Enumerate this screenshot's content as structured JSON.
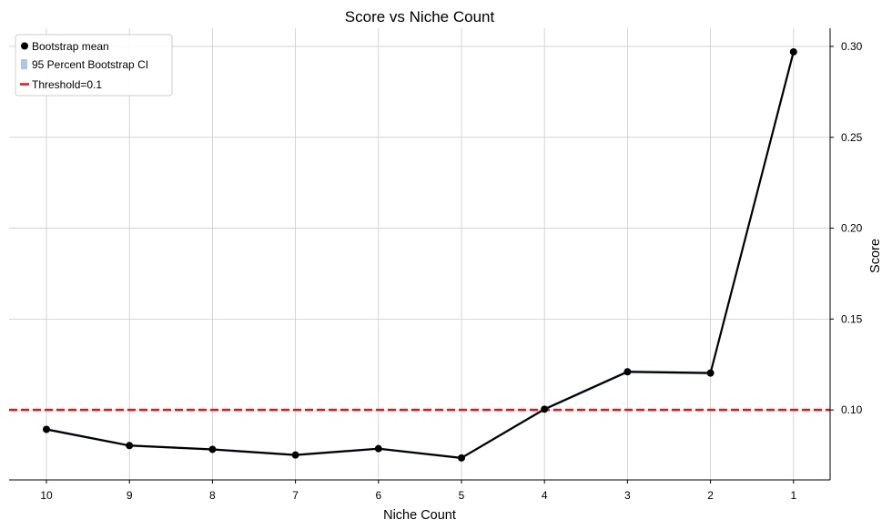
{
  "chart_data": {
    "type": "line",
    "title": "Score vs Niche Count",
    "xlabel": "Niche Count",
    "ylabel": "Score",
    "x": [
      10,
      9,
      8,
      7,
      6,
      5,
      4,
      3,
      2,
      1
    ],
    "x_ticks": [
      "10",
      "9",
      "8",
      "7",
      "6",
      "5",
      "4",
      "3",
      "2",
      "1"
    ],
    "y_ticks": [
      "0.10",
      "0.15",
      "0.20",
      "0.25",
      "0.30"
    ],
    "y_tick_values": [
      0.1,
      0.15,
      0.2,
      0.25,
      0.3
    ],
    "ylim": [
      0.0615,
      0.31
    ],
    "y_axis_side": "right",
    "grid": true,
    "series": [
      {
        "name": "Bootstrap mean",
        "values": [
          0.0893,
          0.0804,
          0.0783,
          0.0752,
          0.0787,
          0.0736,
          0.1004,
          0.121,
          0.1203,
          0.297
        ],
        "ci_lower": [
          0.0885,
          0.0797,
          0.0776,
          0.0745,
          0.078,
          0.0729,
          0.0995,
          0.1201,
          0.1194,
          0.2962
        ],
        "ci_upper": [
          0.0901,
          0.0811,
          0.079,
          0.0759,
          0.0794,
          0.0743,
          0.1013,
          0.1219,
          0.1212,
          0.2978
        ],
        "color": "#000000",
        "ci_color": "#aec7e8"
      }
    ],
    "ci_name": "95 Percent Bootstrap CI",
    "threshold": {
      "name": "Threshold=0.1",
      "value": 0.1,
      "color": "#ee1111"
    },
    "legend": {
      "placement": "top-left",
      "entries": [
        "Bootstrap mean",
        "95 Percent Bootstrap CI",
        "Threshold=0.1"
      ]
    }
  }
}
